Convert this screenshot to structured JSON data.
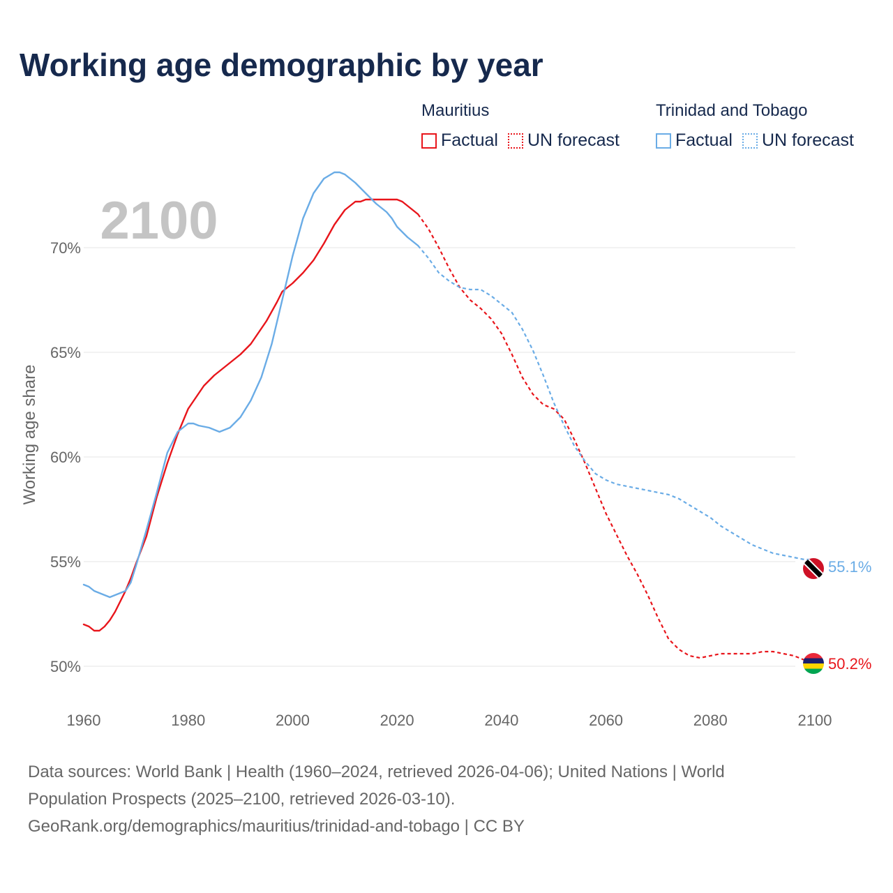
{
  "title": "Working age demographic by year",
  "legend": {
    "groups": [
      {
        "name": "Mauritius",
        "color": "#e8151b",
        "factual_label": "Factual",
        "forecast_label": "UN forecast"
      },
      {
        "name": "Trinidad and Tobago",
        "color": "#6aace6",
        "factual_label": "Factual",
        "forecast_label": "UN forecast"
      }
    ]
  },
  "chart_data": {
    "type": "line",
    "watermark_year": "2100",
    "ylabel": "Working age share",
    "xlabel": "",
    "xlim": [
      1960,
      2100
    ],
    "ylim": [
      48.5,
      73.5
    ],
    "x_ticks": [
      "1960",
      "1980",
      "2000",
      "2020",
      "2040",
      "2060",
      "2080",
      "2100"
    ],
    "y_ticks": [
      {
        "value": 50,
        "label": "50%"
      },
      {
        "value": 55,
        "label": "55%"
      },
      {
        "value": 60,
        "label": "60%"
      },
      {
        "value": 65,
        "label": "65%"
      },
      {
        "value": 70,
        "label": "70%"
      }
    ],
    "forecast_start": 2024,
    "series": [
      {
        "name": "Mauritius",
        "color": "#e8151b",
        "end_label": "50.2%",
        "flag": "mauritius-flag",
        "flag_colors": [
          "#ea2839",
          "#1a206d",
          "#ffd500",
          "#00a551"
        ],
        "x": [
          1960,
          1961,
          1962,
          1963,
          1964,
          1965,
          1966,
          1967,
          1968,
          1969,
          1970,
          1972,
          1974,
          1976,
          1978,
          1980,
          1983,
          1985,
          1988,
          1990,
          1992,
          1995,
          1997,
          1998,
          2000,
          2002,
          2004,
          2006,
          2008,
          2010,
          2012,
          2013,
          2014,
          2016,
          2018,
          2020,
          2021,
          2022,
          2024,
          2026,
          2028,
          2030,
          2032,
          2034,
          2036,
          2038,
          2040,
          2042,
          2044,
          2046,
          2048,
          2050,
          2052,
          2054,
          2056,
          2058,
          2060,
          2062,
          2064,
          2066,
          2068,
          2070,
          2072,
          2074,
          2076,
          2078,
          2080,
          2082,
          2084,
          2086,
          2088,
          2090,
          2092,
          2094,
          2096,
          2098,
          2100
        ],
        "y": [
          52.0,
          51.9,
          51.7,
          51.7,
          51.9,
          52.2,
          52.6,
          53.1,
          53.6,
          54.2,
          54.9,
          56.2,
          58.1,
          59.7,
          61.1,
          62.3,
          63.4,
          63.9,
          64.5,
          64.9,
          65.4,
          66.5,
          67.4,
          67.9,
          68.3,
          68.8,
          69.4,
          70.2,
          71.1,
          71.8,
          72.2,
          72.2,
          72.3,
          72.3,
          72.3,
          72.3,
          72.2,
          72.0,
          71.6,
          70.9,
          70.0,
          69.0,
          68.1,
          67.5,
          67.1,
          66.6,
          65.9,
          64.9,
          63.8,
          63.0,
          62.5,
          62.3,
          61.8,
          60.8,
          59.7,
          58.5,
          57.3,
          56.3,
          55.3,
          54.4,
          53.4,
          52.3,
          51.3,
          50.8,
          50.5,
          50.4,
          50.5,
          50.6,
          50.6,
          50.6,
          50.6,
          50.7,
          50.7,
          50.6,
          50.5,
          50.3,
          50.2
        ]
      },
      {
        "name": "Trinidad and Tobago",
        "color": "#6aace6",
        "end_label": "55.1%",
        "flag": "trinidad-and-tobago-flag",
        "flag_colors": [
          "#ce1126",
          "#ffffff",
          "#000000"
        ],
        "x": [
          1960,
          1961,
          1962,
          1964,
          1965,
          1966,
          1968,
          1969,
          1970,
          1972,
          1974,
          1976,
          1978,
          1979,
          1980,
          1981,
          1982,
          1984,
          1986,
          1988,
          1990,
          1992,
          1994,
          1996,
          1998,
          2000,
          2002,
          2004,
          2006,
          2008,
          2009,
          2010,
          2012,
          2014,
          2016,
          2017,
          2018,
          2019,
          2020,
          2022,
          2024,
          2026,
          2028,
          2030,
          2032,
          2034,
          2036,
          2038,
          2040,
          2042,
          2044,
          2046,
          2048,
          2050,
          2052,
          2054,
          2056,
          2058,
          2060,
          2062,
          2064,
          2066,
          2068,
          2070,
          2072,
          2074,
          2076,
          2078,
          2080,
          2082,
          2084,
          2086,
          2088,
          2090,
          2092,
          2094,
          2096,
          2098,
          2100
        ],
        "y": [
          53.9,
          53.8,
          53.6,
          53.4,
          53.3,
          53.4,
          53.6,
          54.0,
          54.8,
          56.5,
          58.3,
          60.2,
          61.2,
          61.4,
          61.6,
          61.6,
          61.5,
          61.4,
          61.2,
          61.4,
          61.9,
          62.7,
          63.8,
          65.4,
          67.5,
          69.6,
          71.4,
          72.6,
          73.3,
          73.6,
          73.6,
          73.5,
          73.1,
          72.6,
          72.1,
          71.9,
          71.7,
          71.4,
          71.0,
          70.5,
          70.1,
          69.5,
          68.8,
          68.4,
          68.1,
          68.0,
          68.0,
          67.7,
          67.3,
          66.9,
          66.1,
          65.1,
          63.9,
          62.6,
          61.5,
          60.5,
          59.8,
          59.2,
          58.9,
          58.7,
          58.6,
          58.5,
          58.4,
          58.3,
          58.2,
          58.0,
          57.7,
          57.4,
          57.1,
          56.7,
          56.4,
          56.1,
          55.8,
          55.6,
          55.4,
          55.3,
          55.2,
          55.1,
          55.1
        ]
      }
    ]
  },
  "source": {
    "line1": "Data sources: World Bank | Health (1960–2024, retrieved 2026-04-06); United Nations | World",
    "line2": "Population Prospects (2025–2100, retrieved 2026-03-10).",
    "line3": "GeoRank.org/demographics/mauritius/trinidad-and-tobago | CC BY"
  }
}
